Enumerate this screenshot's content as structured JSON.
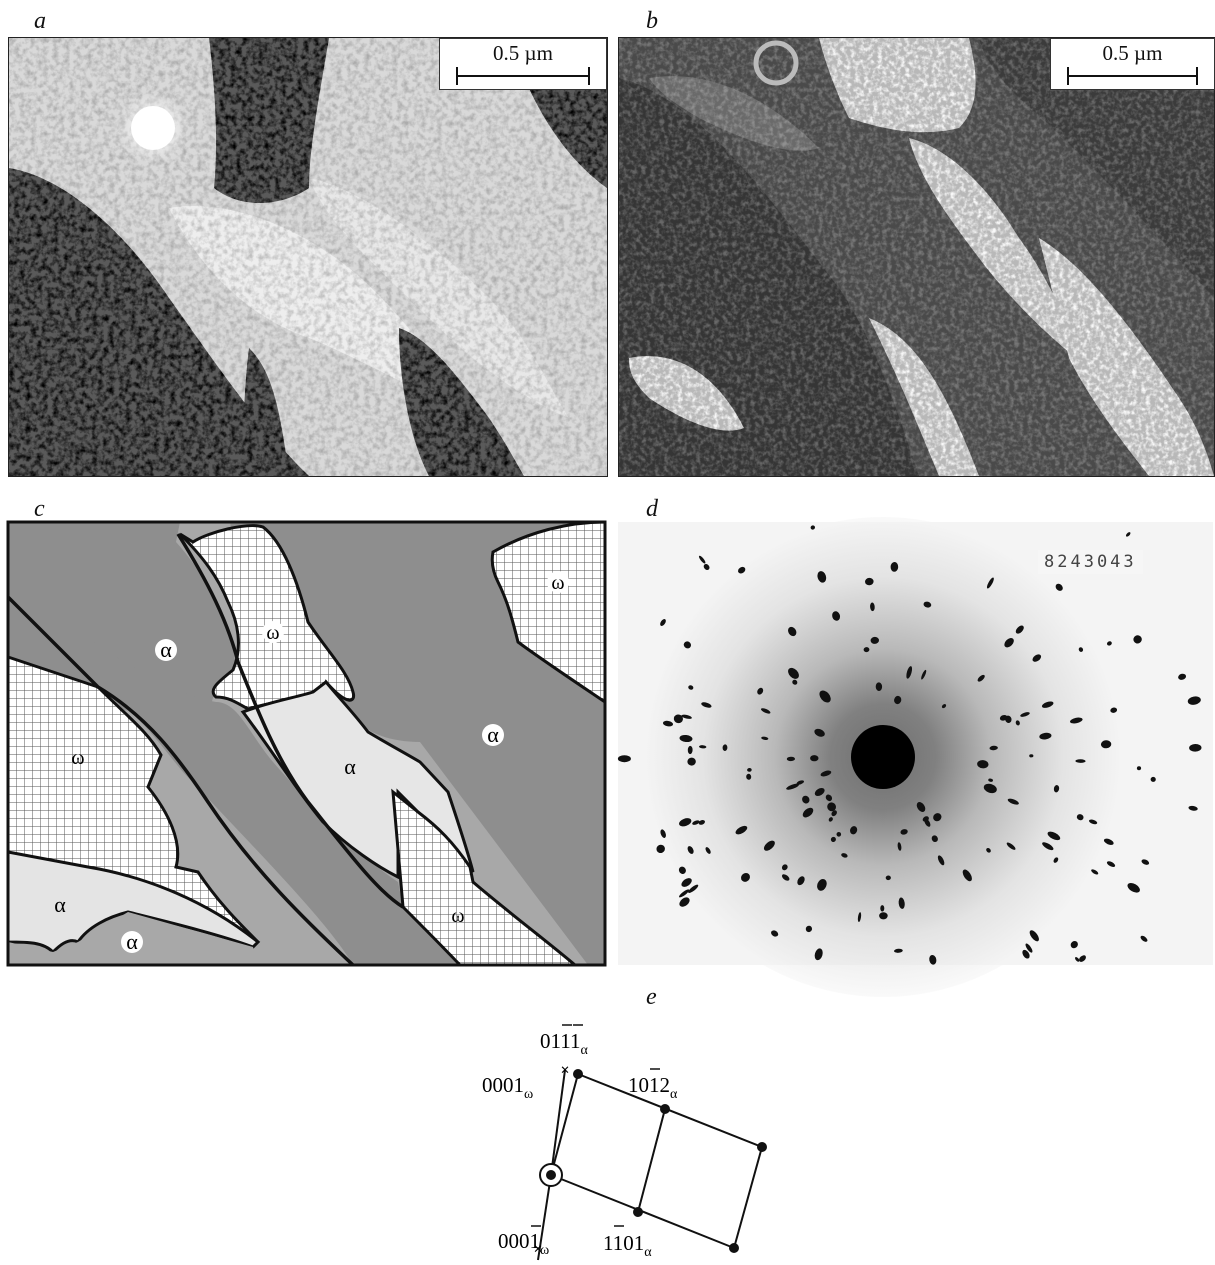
{
  "panels": {
    "a": {
      "letter": "a",
      "scale_label": "0.5 µm"
    },
    "b": {
      "letter": "b",
      "scale_label": "0.5 µm"
    },
    "c": {
      "letter": "c",
      "labels": [
        "ω",
        "ω",
        "α",
        "α",
        "ω",
        "α",
        "α",
        "α",
        "ω"
      ]
    },
    "d": {
      "letter": "d",
      "plate_number": "8243043"
    },
    "e": {
      "letter": "e",
      "spot_0111": "0111",
      "spot_0111_sub": "α",
      "spot_1012": "1012",
      "spot_1012_sub": "α",
      "spot_1101": "1101",
      "spot_1101_sub": "α",
      "spot_0001w": "0001",
      "spot_0001w_sub": "ω",
      "spot_000bar1w": "0001",
      "spot_000bar1w_sub": "ω"
    }
  },
  "colors": {
    "alpha_dark": "#8e8e8e",
    "alpha_light": "#e6e6e6",
    "omega_grid": "#555555",
    "background_gray": "#a8a8a8"
  }
}
